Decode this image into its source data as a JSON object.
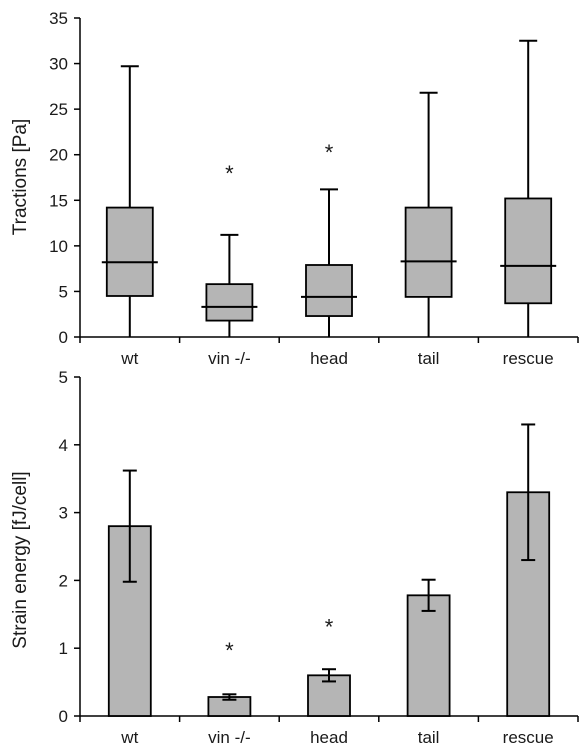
{
  "colors": {
    "box_fill": "#b5b5b5",
    "bar_fill": "#b5b5b5",
    "line": "#000000"
  },
  "chart_data": [
    {
      "type": "box",
      "ylabel": "Tractions [Pa]",
      "ylim": [
        0,
        35
      ],
      "yticks": [
        "0",
        "5",
        "10",
        "15",
        "20",
        "25",
        "30",
        "35"
      ],
      "categories": [
        "wt",
        "vin -/-",
        "head",
        "tail",
        "rescue"
      ],
      "boxes": [
        {
          "min": 0,
          "q1": 4.5,
          "median": 8.2,
          "q3": 14.2,
          "max": 29.7
        },
        {
          "min": 0,
          "q1": 1.8,
          "median": 3.3,
          "q3": 5.8,
          "max": 11.2
        },
        {
          "min": 0,
          "q1": 2.3,
          "median": 4.4,
          "q3": 7.9,
          "max": 16.2
        },
        {
          "min": 0,
          "q1": 4.4,
          "median": 8.3,
          "q3": 14.2,
          "max": 26.8
        },
        {
          "min": 0,
          "q1": 3.7,
          "median": 7.8,
          "q3": 15.2,
          "max": 32.5
        }
      ],
      "annotations": [
        {
          "category": "vin -/-",
          "text": "*",
          "y": 18.2
        },
        {
          "category": "head",
          "text": "*",
          "y": 20.5
        }
      ],
      "grid": false
    },
    {
      "type": "bar",
      "ylabel": "Strain energy [fJ/cell]",
      "ylim": [
        0,
        5
      ],
      "yticks": [
        "0",
        "1",
        "2",
        "3",
        "4",
        "5"
      ],
      "categories": [
        "wt",
        "vin -/-",
        "head",
        "tail",
        "rescue"
      ],
      "values": [
        2.8,
        0.28,
        0.6,
        1.78,
        3.3
      ],
      "errors": [
        0.82,
        0.04,
        0.09,
        0.23,
        1.0
      ],
      "annotations": [
        {
          "category": "vin -/-",
          "text": "*",
          "y": 1.0
        },
        {
          "category": "head",
          "text": "*",
          "y": 1.35
        }
      ],
      "grid": false
    }
  ]
}
